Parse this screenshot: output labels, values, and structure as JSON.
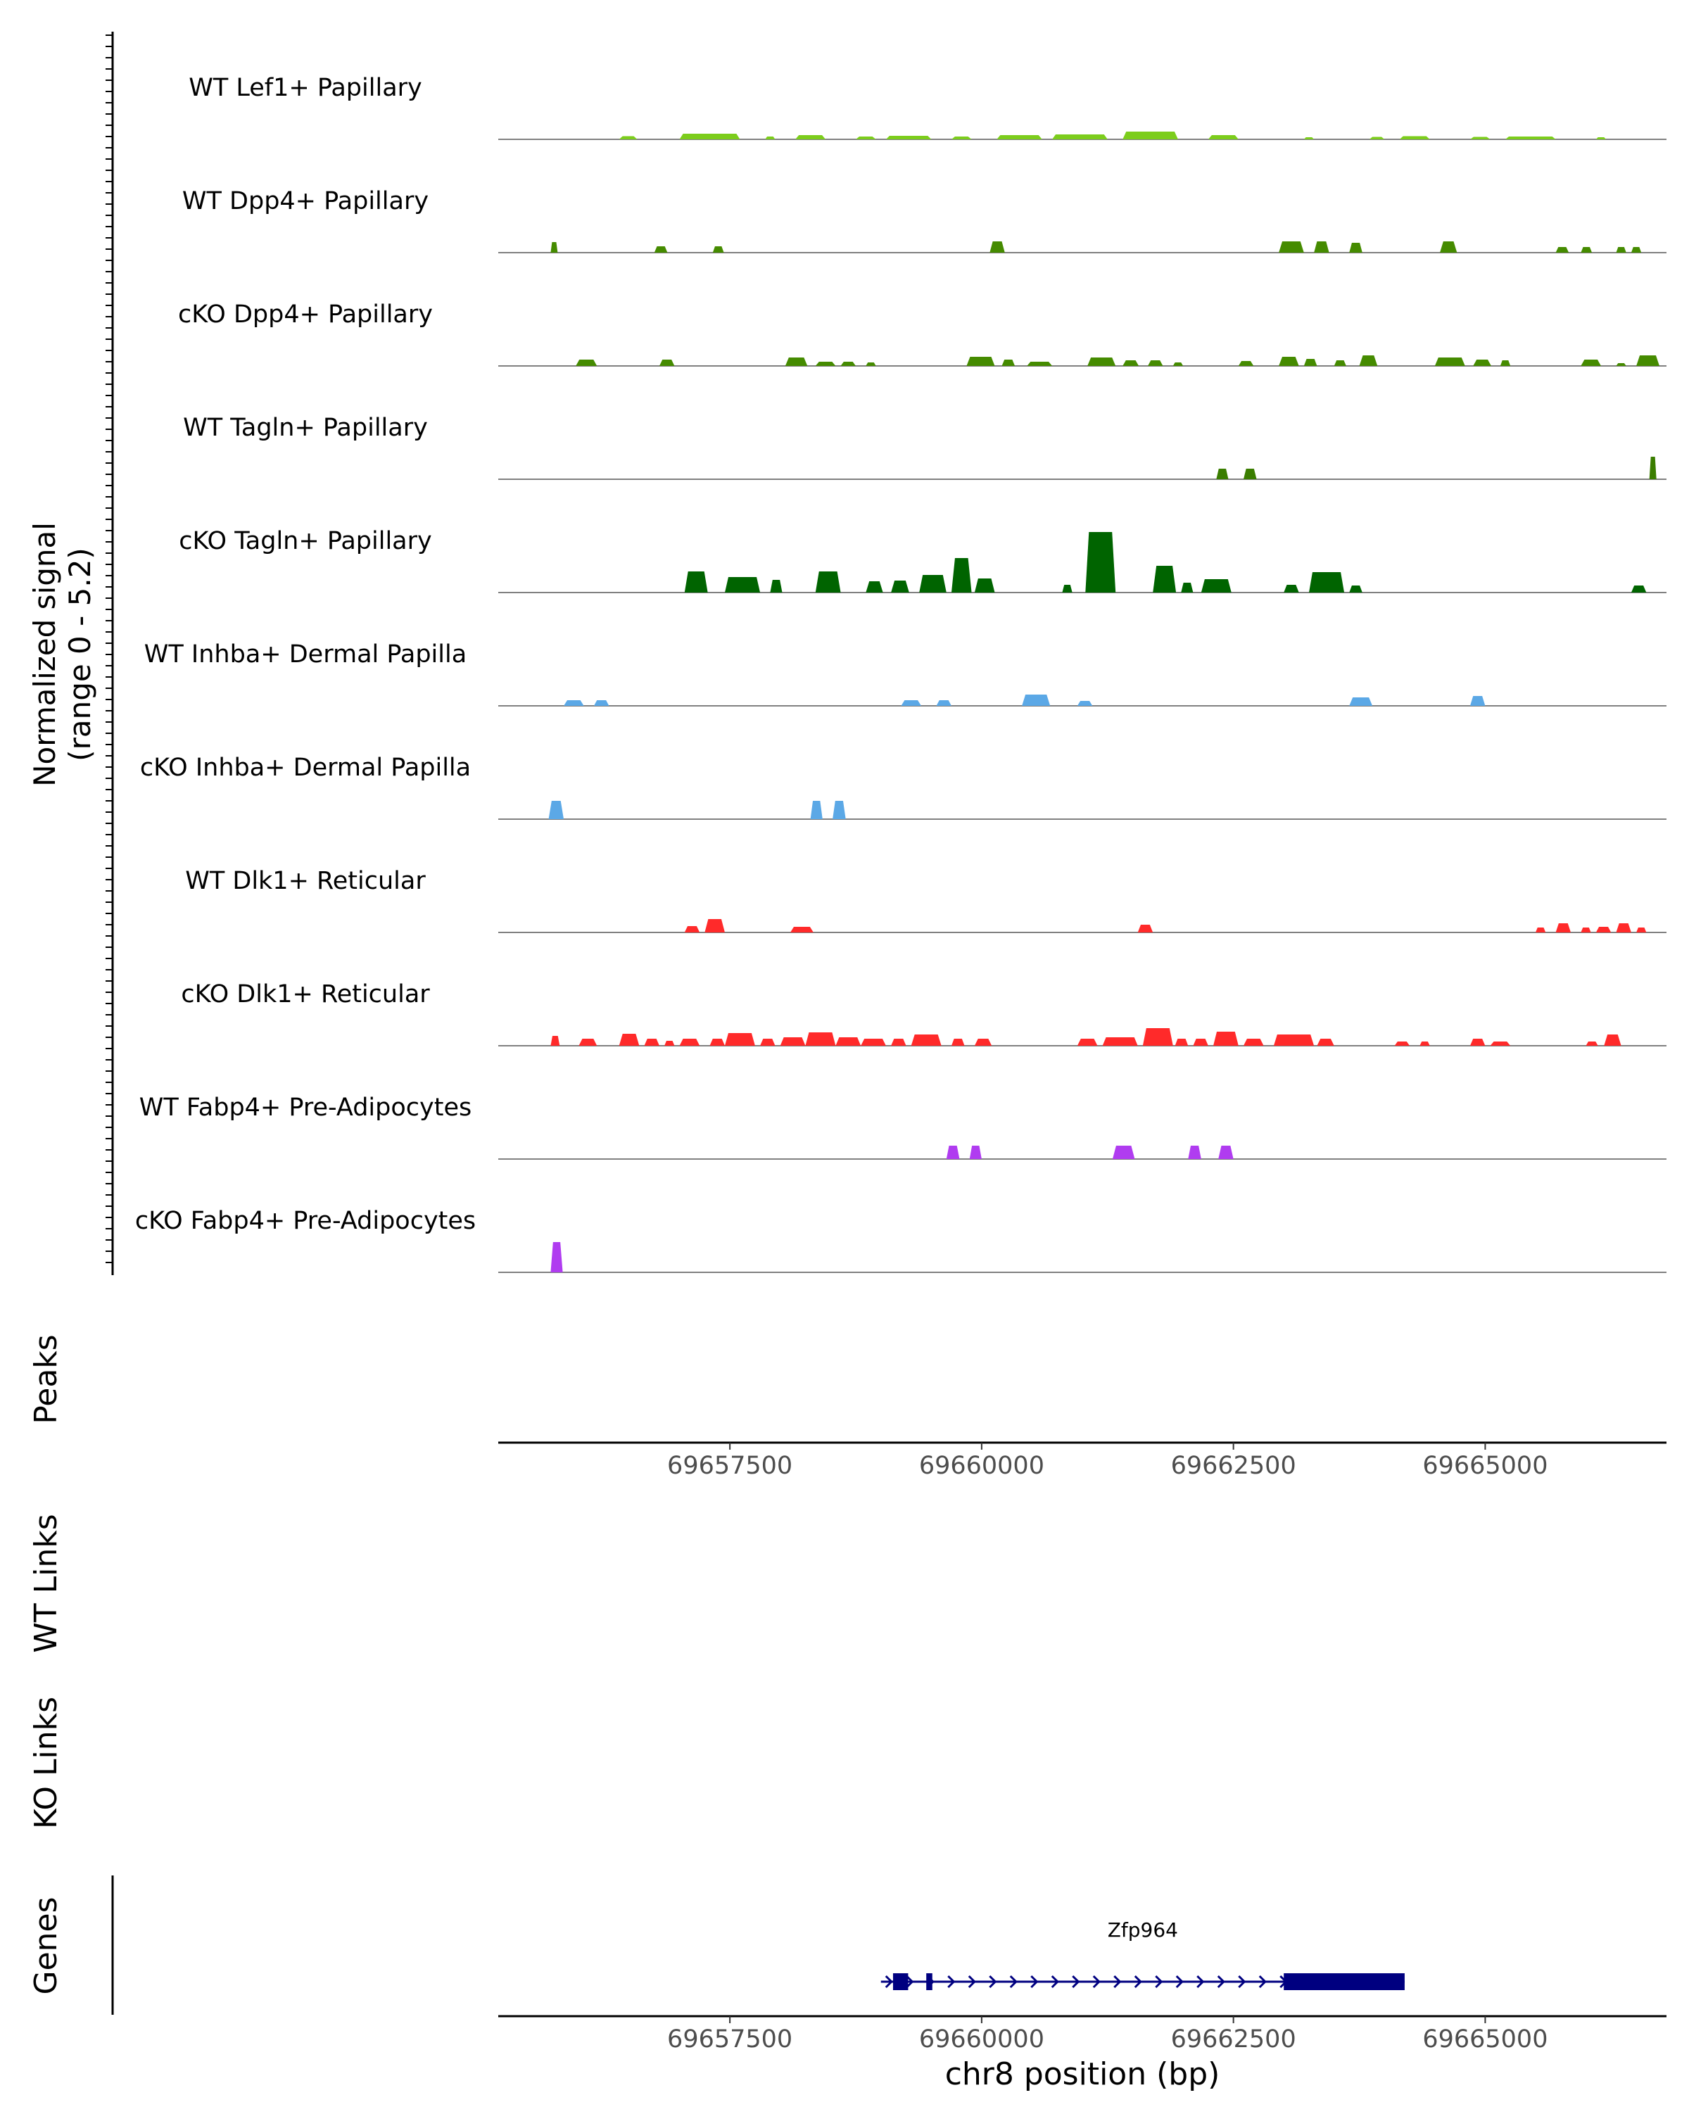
{
  "chart_data": {
    "type": "area",
    "title": "",
    "chromosome": "chr8",
    "xlabel": "chr8 position (bp)",
    "xlim": [
      69655200,
      69666800
    ],
    "xticks": [
      69657500,
      69660000,
      69662500,
      69665000
    ],
    "xtick_labels": [
      "69657500",
      "69660000",
      "69662500",
      "69665000"
    ],
    "ylabel_line1": "Normalized signal",
    "ylabel_line2": "(range 0 - 5.2)",
    "ylim": [
      0,
      5.2
    ],
    "tracks": [
      {
        "name": "WT Lef1+ Papillary",
        "color": "#7CCD1C",
        "peaks": [
          [
            69656400,
            69656580,
            0.45
          ],
          [
            69657000,
            69657600,
            0.8
          ],
          [
            69657850,
            69657950,
            0.4
          ],
          [
            69658150,
            69658450,
            0.6
          ],
          [
            69658750,
            69658950,
            0.4
          ],
          [
            69659050,
            69659500,
            0.5
          ],
          [
            69659700,
            69659900,
            0.4
          ],
          [
            69660150,
            69660600,
            0.6
          ],
          [
            69660700,
            69661250,
            0.7
          ],
          [
            69661400,
            69661950,
            1.1
          ],
          [
            69662250,
            69662550,
            0.6
          ],
          [
            69663200,
            69663300,
            0.3
          ],
          [
            69663850,
            69664000,
            0.35
          ],
          [
            69664150,
            69664450,
            0.45
          ],
          [
            69664850,
            69665050,
            0.35
          ],
          [
            69665200,
            69665700,
            0.4
          ],
          [
            69666100,
            69666200,
            0.3
          ]
        ]
      },
      {
        "name": "WT Dpp4+ Papillary",
        "color": "#458B00",
        "peaks": [
          [
            69655720,
            69655790,
            1.5
          ],
          [
            69656750,
            69656880,
            0.9
          ],
          [
            69657330,
            69657440,
            0.9
          ],
          [
            69660080,
            69660230,
            1.6
          ],
          [
            69662950,
            69663200,
            1.6
          ],
          [
            69663300,
            69663450,
            1.6
          ],
          [
            69663650,
            69663780,
            1.4
          ],
          [
            69664550,
            69664720,
            1.6
          ],
          [
            69665700,
            69665830,
            0.8
          ],
          [
            69665950,
            69666060,
            0.8
          ],
          [
            69666300,
            69666400,
            0.8
          ],
          [
            69666450,
            69666550,
            0.8
          ]
        ]
      },
      {
        "name": "cKO Dpp4+ Papillary",
        "color": "#458B00",
        "peaks": [
          [
            69655970,
            69656180,
            0.9
          ],
          [
            69656800,
            69656950,
            0.9
          ],
          [
            69658050,
            69658270,
            1.2
          ],
          [
            69658350,
            69658550,
            0.6
          ],
          [
            69658600,
            69658750,
            0.6
          ],
          [
            69658850,
            69658950,
            0.5
          ],
          [
            69659850,
            69660130,
            1.3
          ],
          [
            69660200,
            69660330,
            0.9
          ],
          [
            69660450,
            69660700,
            0.6
          ],
          [
            69661050,
            69661330,
            1.2
          ],
          [
            69661400,
            69661560,
            0.8
          ],
          [
            69661650,
            69661800,
            0.8
          ],
          [
            69661900,
            69662000,
            0.5
          ],
          [
            69662550,
            69662700,
            0.7
          ],
          [
            69662950,
            69663150,
            1.3
          ],
          [
            69663200,
            69663330,
            1.0
          ],
          [
            69663500,
            69663620,
            0.8
          ],
          [
            69663750,
            69663930,
            1.5
          ],
          [
            69664500,
            69664800,
            1.2
          ],
          [
            69664880,
            69665060,
            0.9
          ],
          [
            69665150,
            69665250,
            0.8
          ],
          [
            69665950,
            69666150,
            0.9
          ],
          [
            69666300,
            69666400,
            0.4
          ],
          [
            69666500,
            69666730,
            1.5
          ]
        ]
      },
      {
        "name": "WT Tagln+ Papillary",
        "color": "#3A7D00",
        "peaks": [
          [
            69662330,
            69662450,
            1.5
          ],
          [
            69662600,
            69662730,
            1.5
          ],
          [
            69666630,
            69666700,
            3.2
          ]
        ]
      },
      {
        "name": "cKO Tagln+ Papillary",
        "color": "#006400",
        "peaks": [
          [
            69657050,
            69657280,
            3.0
          ],
          [
            69657450,
            69657800,
            2.2
          ],
          [
            69657900,
            69658020,
            1.8
          ],
          [
            69658350,
            69658600,
            3.0
          ],
          [
            69658850,
            69659020,
            1.6
          ],
          [
            69659100,
            69659280,
            1.7
          ],
          [
            69659380,
            69659650,
            2.5
          ],
          [
            69659700,
            69659900,
            4.9
          ],
          [
            69659930,
            69660130,
            2.0
          ],
          [
            69660800,
            69660900,
            1.1
          ],
          [
            69661030,
            69661330,
            8.6
          ],
          [
            69661700,
            69661930,
            3.8
          ],
          [
            69661980,
            69662100,
            1.4
          ],
          [
            69662180,
            69662480,
            1.9
          ],
          [
            69663000,
            69663150,
            1.1
          ],
          [
            69663250,
            69663600,
            2.9
          ],
          [
            69663650,
            69663780,
            1.0
          ],
          [
            69666450,
            69666600,
            1.0
          ]
        ]
      },
      {
        "name": "WT Inhba+ Dermal Papilla",
        "color": "#5BA8E6",
        "peaks": [
          [
            69655850,
            69656050,
            0.8
          ],
          [
            69656150,
            69656300,
            0.8
          ],
          [
            69659200,
            69659400,
            0.8
          ],
          [
            69659550,
            69659700,
            0.8
          ],
          [
            69660400,
            69660680,
            1.6
          ],
          [
            69660950,
            69661100,
            0.7
          ],
          [
            69663650,
            69663880,
            1.2
          ],
          [
            69664850,
            69665000,
            1.4
          ]
        ]
      },
      {
        "name": "cKO Inhba+ Dermal Papilla",
        "color": "#5BA8E6",
        "peaks": [
          [
            69655700,
            69655850,
            2.6
          ],
          [
            69658300,
            69658420,
            2.6
          ],
          [
            69658520,
            69658650,
            2.6
          ]
        ]
      },
      {
        "name": "WT Dlk1+ Reticular",
        "color": "#FF2A2A",
        "peaks": [
          [
            69657050,
            69657200,
            0.9
          ],
          [
            69657250,
            69657450,
            1.9
          ],
          [
            69658100,
            69658330,
            0.8
          ],
          [
            69661550,
            69661700,
            1.1
          ],
          [
            69665500,
            69665600,
            0.7
          ],
          [
            69665700,
            69665850,
            1.3
          ],
          [
            69665950,
            69666050,
            0.7
          ],
          [
            69666100,
            69666250,
            0.8
          ],
          [
            69666300,
            69666450,
            1.3
          ],
          [
            69666500,
            69666600,
            0.7
          ]
        ]
      },
      {
        "name": "cKO Dlk1+ Reticular",
        "color": "#FF2A2A",
        "peaks": [
          [
            69655720,
            69655810,
            1.4
          ],
          [
            69656000,
            69656180,
            1.0
          ],
          [
            69656400,
            69656600,
            1.7
          ],
          [
            69656650,
            69656800,
            1.0
          ],
          [
            69656850,
            69656950,
            0.7
          ],
          [
            69657000,
            69657200,
            1.0
          ],
          [
            69657300,
            69657450,
            1.0
          ],
          [
            69657450,
            69657750,
            1.8
          ],
          [
            69657800,
            69657950,
            1.0
          ],
          [
            69658000,
            69658250,
            1.2
          ],
          [
            69658250,
            69658550,
            1.9
          ],
          [
            69658550,
            69658800,
            1.2
          ],
          [
            69658800,
            69659050,
            1.0
          ],
          [
            69659100,
            69659250,
            1.0
          ],
          [
            69659300,
            69659600,
            1.6
          ],
          [
            69659700,
            69659830,
            1.0
          ],
          [
            69659930,
            69660100,
            1.0
          ],
          [
            69660950,
            69661150,
            1.0
          ],
          [
            69661200,
            69661550,
            1.2
          ],
          [
            69661600,
            69661900,
            2.5
          ],
          [
            69661920,
            69662050,
            1.0
          ],
          [
            69662100,
            69662250,
            1.0
          ],
          [
            69662300,
            69662550,
            2.0
          ],
          [
            69662600,
            69662800,
            1.0
          ],
          [
            69662900,
            69663300,
            1.6
          ],
          [
            69663330,
            69663500,
            1.0
          ],
          [
            69664100,
            69664250,
            0.6
          ],
          [
            69664350,
            69664450,
            0.6
          ],
          [
            69664850,
            69665000,
            1.0
          ],
          [
            69665050,
            69665250,
            0.6
          ],
          [
            69666000,
            69666120,
            0.6
          ],
          [
            69666180,
            69666350,
            1.6
          ]
        ]
      },
      {
        "name": "WT Fabp4+ Pre-Adipocytes",
        "color": "#B03CF0",
        "peaks": [
          [
            69659650,
            69659780,
            1.9
          ],
          [
            69659880,
            69660000,
            1.9
          ],
          [
            69661300,
            69661520,
            1.9
          ],
          [
            69662050,
            69662180,
            1.9
          ],
          [
            69662350,
            69662500,
            1.9
          ]
        ]
      },
      {
        "name": "cKO Fabp4+ Pre-Adipocytes",
        "color": "#B03CF0",
        "peaks": [
          [
            69655720,
            69655840,
            4.3
          ]
        ]
      }
    ],
    "panels": [
      "Peaks",
      "WT Links",
      "KO Links",
      "Genes"
    ],
    "genes": [
      {
        "name": "Zfp964",
        "start": 69659000,
        "end": 69664200,
        "strand": "+",
        "color": "#000080",
        "exons": [
          [
            69659120,
            69659270
          ],
          [
            69659450,
            69659510
          ],
          [
            69663000,
            69664200
          ]
        ]
      }
    ]
  }
}
